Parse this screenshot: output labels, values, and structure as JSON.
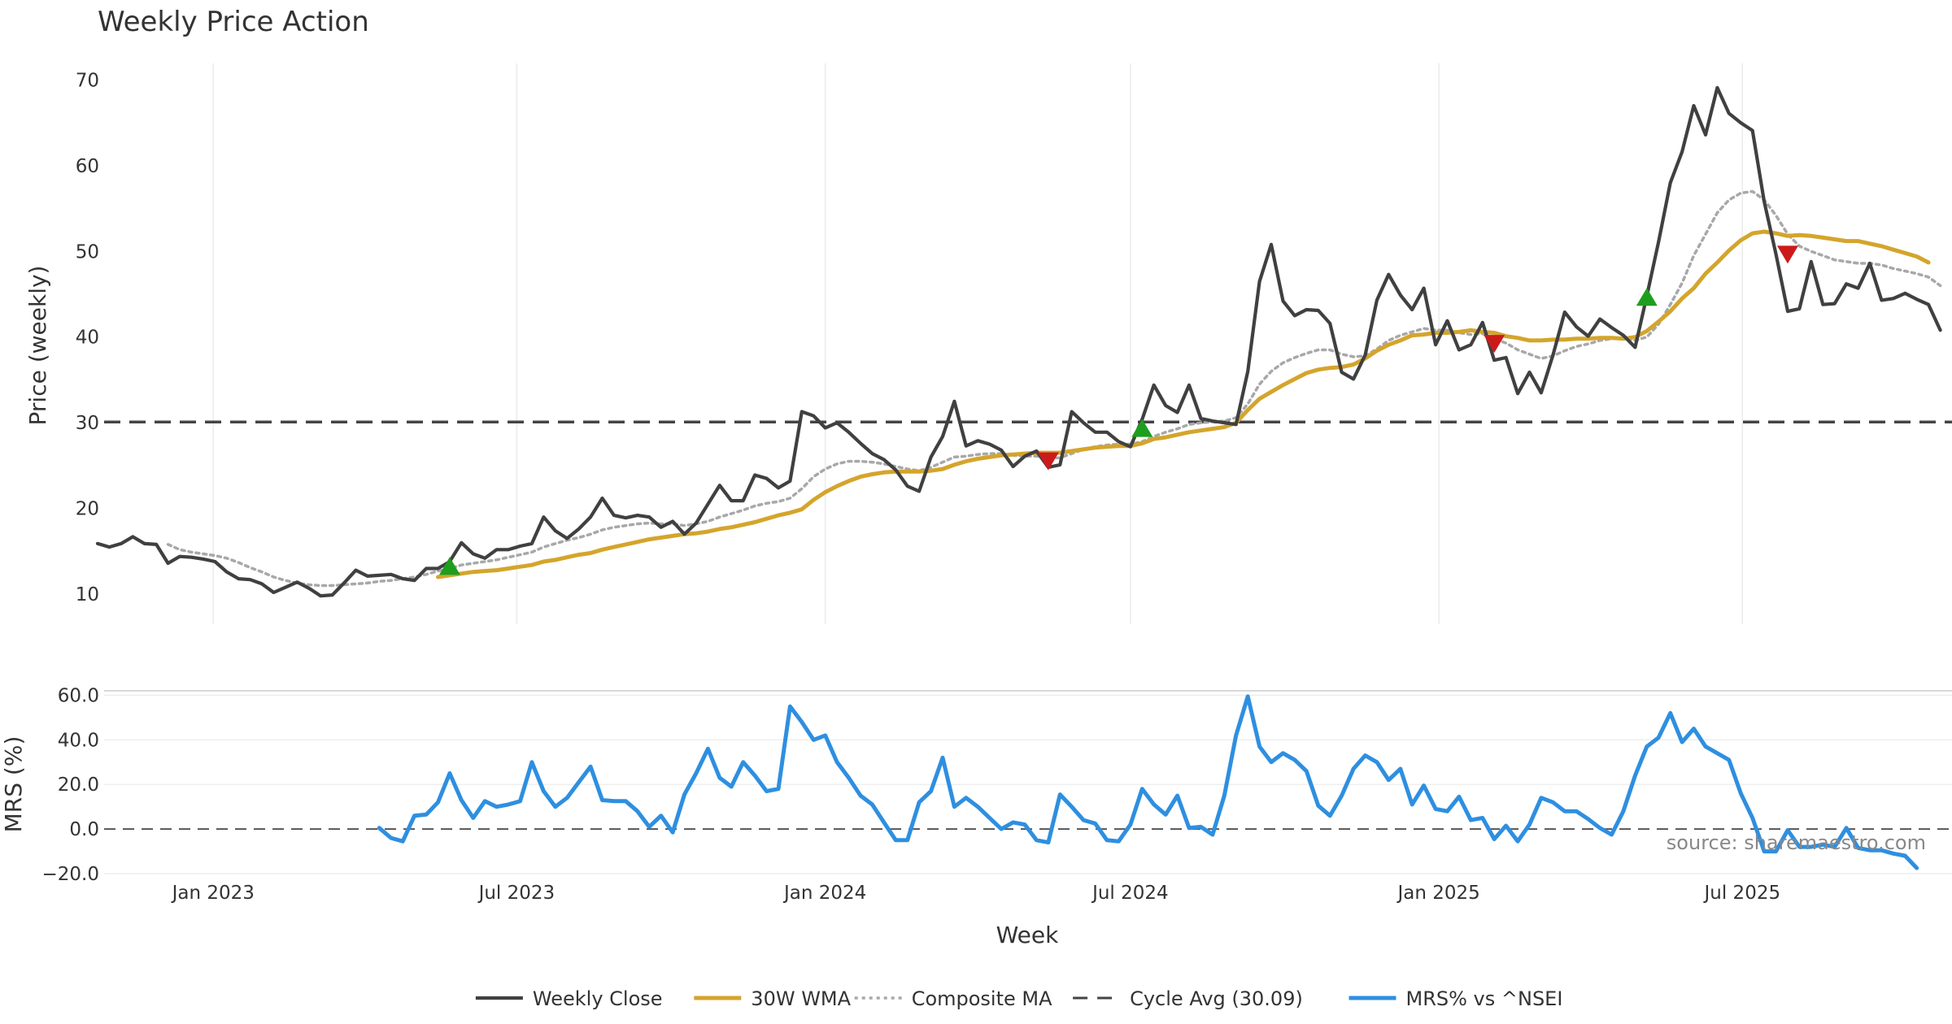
{
  "chart_data": {
    "type": "line",
    "title": "Weekly Price Action",
    "xlabel": "Week",
    "source": "source: sharemaestro.com",
    "x_ticks": [
      "Jan 2023",
      "Jul 2023",
      "Jan 2024",
      "Jul 2024",
      "Jan 2025",
      "Jul 2025"
    ],
    "x_range": [
      "2022-10-24",
      "2025-11-03"
    ],
    "start_date": "2022-10-24",
    "legend_position": "bottom-center",
    "price_panel": {
      "ylabel": "Price (weekly)",
      "ylim": [
        6.5,
        72.5
      ],
      "y_ticks": [
        10,
        20,
        30,
        40,
        50,
        60,
        70
      ],
      "grid": true,
      "series": [
        {
          "name": "Weekly Close",
          "color": "#404040",
          "style": "solid",
          "values": [
            15.9,
            15.5,
            15.9,
            16.7,
            15.9,
            15.8,
            13.6,
            14.4,
            14.3,
            14.1,
            13.8,
            12.6,
            11.8,
            11.7,
            11.2,
            10.2,
            10.8,
            11.4,
            10.7,
            9.8,
            9.9,
            11.3,
            12.8,
            12.1,
            12.2,
            12.3,
            11.8,
            11.6,
            13.0,
            13.0,
            13.8,
            16.0,
            14.7,
            14.2,
            15.2,
            15.2,
            15.6,
            15.9,
            19.0,
            17.4,
            16.5,
            17.6,
            19.0,
            21.2,
            19.2,
            18.9,
            19.2,
            19.0,
            17.8,
            18.5,
            17.0,
            18.3,
            20.5,
            22.7,
            20.9,
            20.9,
            23.9,
            23.5,
            22.4,
            23.2,
            31.3,
            30.8,
            29.4,
            30.0,
            28.9,
            27.6,
            26.4,
            25.7,
            24.5,
            22.6,
            22.0,
            26.0,
            28.4,
            32.5,
            27.3,
            27.9,
            27.5,
            26.8,
            24.9,
            26.1,
            26.7,
            24.8,
            25.1,
            31.3,
            30.0,
            28.9,
            28.9,
            27.8,
            27.2,
            30.4,
            34.4,
            32.0,
            31.2,
            34.4,
            30.5,
            30.2,
            30.0,
            29.8,
            36.0,
            46.5,
            50.8,
            44.2,
            42.5,
            43.2,
            43.1,
            41.6,
            35.9,
            35.1,
            37.9,
            44.3,
            47.3,
            44.9,
            43.2,
            45.7,
            39.1,
            41.9,
            38.5,
            39.1,
            41.7,
            37.3,
            37.6,
            33.4,
            35.9,
            33.5,
            37.9,
            42.9,
            41.2,
            40.1,
            42.1,
            41.1,
            40.2,
            38.8,
            44.8,
            51.1,
            58.0,
            61.6,
            67.0,
            63.6,
            69.1,
            66.1,
            65.0,
            64.1,
            55.8,
            49.7,
            43.0,
            43.3,
            48.8,
            43.8,
            43.9,
            46.2,
            45.7,
            48.6,
            44.3,
            44.5,
            45.1,
            44.4,
            43.8,
            40.8
          ]
        },
        {
          "name": "30W WMA",
          "color": "#d4a52c",
          "style": "solid",
          "values": [
            null,
            null,
            null,
            null,
            null,
            null,
            null,
            null,
            null,
            null,
            null,
            null,
            null,
            null,
            null,
            null,
            null,
            null,
            null,
            null,
            null,
            null,
            null,
            null,
            null,
            null,
            null,
            null,
            null,
            12.0,
            12.2,
            12.4,
            12.6,
            12.7,
            12.8,
            13.0,
            13.2,
            13.4,
            13.8,
            14.0,
            14.3,
            14.6,
            14.8,
            15.2,
            15.5,
            15.8,
            16.1,
            16.4,
            16.6,
            16.8,
            17.0,
            17.1,
            17.3,
            17.6,
            17.8,
            18.1,
            18.4,
            18.8,
            19.2,
            19.5,
            19.9,
            21.0,
            21.9,
            22.6,
            23.2,
            23.7,
            24.0,
            24.2,
            24.3,
            24.3,
            24.3,
            24.4,
            24.6,
            25.1,
            25.5,
            25.8,
            26.0,
            26.2,
            26.3,
            26.4,
            26.5,
            26.5,
            26.5,
            26.7,
            26.9,
            27.1,
            27.2,
            27.3,
            27.3,
            27.6,
            28.1,
            28.3,
            28.6,
            28.9,
            29.1,
            29.3,
            29.5,
            30.0,
            31.5,
            32.8,
            33.6,
            34.4,
            35.1,
            35.8,
            36.2,
            36.4,
            36.5,
            36.8,
            37.5,
            38.4,
            39.1,
            39.6,
            40.2,
            40.3,
            40.5,
            40.5,
            40.6,
            40.8,
            40.6,
            40.5,
            40.1,
            39.9,
            39.6,
            39.6,
            39.7,
            39.7,
            39.8,
            39.8,
            39.9,
            39.9,
            39.8,
            40.0,
            40.7,
            41.8,
            43.0,
            44.5,
            45.7,
            47.4,
            48.7,
            50.1,
            51.3,
            52.1,
            52.3,
            52.1,
            51.8,
            51.9,
            51.8,
            51.6,
            51.4,
            51.2,
            51.2,
            50.9,
            50.6,
            50.2,
            49.8,
            49.4,
            48.7
          ]
        },
        {
          "name": "Composite MA",
          "color": "#a8a8a8",
          "style": "dotted",
          "values": [
            null,
            null,
            null,
            null,
            null,
            null,
            15.8,
            15.2,
            14.9,
            14.7,
            14.5,
            14.2,
            13.7,
            13.1,
            12.6,
            12.0,
            11.6,
            11.3,
            11.1,
            11.0,
            11.0,
            11.1,
            11.2,
            11.3,
            11.5,
            11.6,
            11.8,
            12.0,
            12.3,
            12.7,
            13.0,
            13.4,
            13.6,
            13.8,
            14.0,
            14.3,
            14.6,
            14.9,
            15.5,
            15.9,
            16.3,
            16.6,
            17.0,
            17.5,
            17.8,
            18.0,
            18.2,
            18.3,
            18.2,
            18.2,
            18.0,
            18.2,
            18.5,
            19.0,
            19.4,
            19.8,
            20.3,
            20.6,
            20.8,
            21.2,
            22.3,
            23.7,
            24.6,
            25.2,
            25.5,
            25.5,
            25.4,
            25.2,
            24.9,
            24.6,
            24.4,
            24.8,
            25.4,
            26.0,
            26.1,
            26.3,
            26.4,
            26.4,
            26.2,
            26.1,
            26.1,
            25.9,
            25.9,
            26.4,
            26.9,
            27.2,
            27.4,
            27.5,
            27.5,
            27.8,
            28.4,
            28.9,
            29.3,
            29.8,
            30.0,
            30.1,
            30.2,
            30.6,
            32.2,
            34.5,
            36.0,
            37.0,
            37.6,
            38.1,
            38.5,
            38.5,
            38.0,
            37.7,
            37.8,
            38.6,
            39.6,
            40.2,
            40.6,
            41.0,
            40.8,
            40.8,
            40.5,
            40.3,
            40.4,
            39.8,
            39.3,
            38.5,
            38.0,
            37.5,
            37.8,
            38.4,
            38.9,
            39.2,
            39.6,
            39.8,
            39.9,
            39.6,
            40.0,
            41.5,
            43.8,
            46.3,
            49.5,
            52.0,
            54.5,
            56.0,
            56.8,
            57.0,
            56.0,
            54.2,
            52.0,
            50.6,
            50.0,
            49.5,
            49.0,
            48.8,
            48.6,
            48.6,
            48.4,
            48.0,
            47.7,
            47.4,
            47.0,
            46.0
          ]
        },
        {
          "name": "Cycle Avg (30.09)",
          "color": "#444444",
          "style": "dashed",
          "value": 30.09
        }
      ],
      "buy_signals": [
        {
          "x": 30,
          "y": 13.2
        },
        {
          "x": 89,
          "y": 29.3
        },
        {
          "x": 132,
          "y": 44.6
        }
      ],
      "sell_signals": [
        {
          "x": 81,
          "y": 25.6
        },
        {
          "x": 119,
          "y": 39.3
        },
        {
          "x": 144,
          "y": 49.7
        }
      ]
    },
    "mrs_panel": {
      "ylabel": "MRS (%)",
      "ylim": [
        -20,
        62
      ],
      "y_ticks": [
        -20,
        0,
        20,
        40,
        60
      ],
      "y_tick_labels": [
        "−20.0",
        "0.0",
        "20.0",
        "40.0",
        "60.0"
      ],
      "zero_line": 0,
      "series": [
        {
          "name": "MRS% vs ^NSEI",
          "color": "#2e8fe0",
          "style": "solid",
          "values": [
            null,
            null,
            null,
            null,
            null,
            null,
            null,
            null,
            null,
            null,
            null,
            null,
            null,
            null,
            null,
            null,
            null,
            null,
            null,
            null,
            null,
            null,
            null,
            null,
            0.5,
            -4.0,
            -5.5,
            6.0,
            6.5,
            12.0,
            25.0,
            13.0,
            5.0,
            12.5,
            10.0,
            11.0,
            12.5,
            30.0,
            17.0,
            10.0,
            14.0,
            21.0,
            28.0,
            13.0,
            12.5,
            12.5,
            8.0,
            1.0,
            6.0,
            -1.5,
            15.5,
            25.0,
            36.0,
            23.0,
            19.0,
            30.0,
            24.0,
            17.0,
            18.0,
            55.0,
            48.0,
            40.0,
            42.0,
            30.0,
            23.0,
            15.0,
            11.0,
            3.0,
            -5.0,
            -5.0,
            12.0,
            17.0,
            32.0,
            10.0,
            14.0,
            10.0,
            5.0,
            0.0,
            3.0,
            2.0,
            -5.0,
            -6.0,
            15.5,
            10.0,
            4.0,
            2.5,
            -5.0,
            -5.5,
            2.0,
            18.0,
            11.0,
            6.5,
            15.0,
            0.5,
            1.0,
            -2.5,
            15.0,
            42.0,
            59.5,
            37.0,
            30.0,
            34.0,
            31.0,
            26.0,
            10.5,
            6.0,
            15.0,
            27.0,
            33.0,
            30.0,
            22.0,
            27.0,
            11.0,
            19.5,
            9.0,
            8.0,
            14.5,
            4.0,
            5.0,
            -4.5,
            1.5,
            -5.5,
            2.0,
            14.0,
            12.0,
            8.0,
            8.0,
            4.5,
            0.5,
            -2.5,
            8.0,
            24.0,
            37.0,
            41.0,
            52.0,
            39.0,
            45.0,
            37.0,
            34.0,
            31.0,
            16.0,
            5.0,
            -10.0,
            -10.0,
            -0.5,
            -8.0,
            -8.0,
            -7.0,
            -8.0,
            0.5,
            -8.5,
            -9.5,
            -9.5,
            -11.0,
            -12.0,
            -17.5
          ]
        }
      ]
    }
  }
}
